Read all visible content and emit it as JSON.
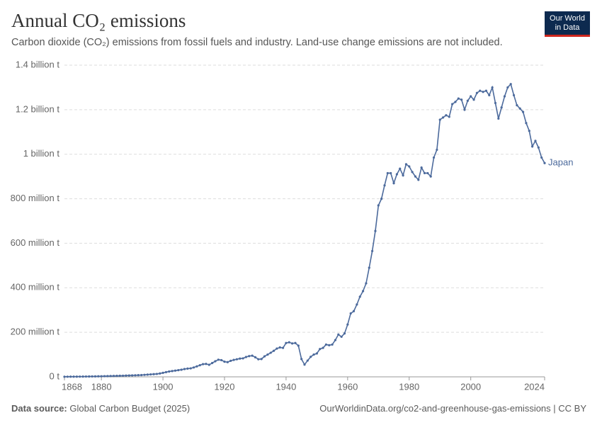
{
  "chart_data": {
    "type": "line",
    "title": "Annual CO₂ emissions",
    "subtitle": "Carbon dioxide (CO₂) emissions from fossil fuels and industry. Land-use change emissions are not included.",
    "logo": [
      "Our World",
      "in Data"
    ],
    "source_label": "Data source:",
    "source": "Global Carbon Budget (2025)",
    "footer_right": "OurWorldinData.org/co2-and-greenhouse-gas-emissions | CC BY",
    "x": [
      1868,
      1869,
      1870,
      1871,
      1872,
      1873,
      1874,
      1875,
      1876,
      1877,
      1878,
      1879,
      1880,
      1881,
      1882,
      1883,
      1884,
      1885,
      1886,
      1887,
      1888,
      1889,
      1890,
      1891,
      1892,
      1893,
      1894,
      1895,
      1896,
      1897,
      1898,
      1899,
      1900,
      1901,
      1902,
      1903,
      1904,
      1905,
      1906,
      1907,
      1908,
      1909,
      1910,
      1911,
      1912,
      1913,
      1914,
      1915,
      1916,
      1917,
      1918,
      1919,
      1920,
      1921,
      1922,
      1923,
      1924,
      1925,
      1926,
      1927,
      1928,
      1929,
      1930,
      1931,
      1932,
      1933,
      1934,
      1935,
      1936,
      1937,
      1938,
      1939,
      1940,
      1941,
      1942,
      1943,
      1944,
      1945,
      1946,
      1947,
      1948,
      1949,
      1950,
      1951,
      1952,
      1953,
      1954,
      1955,
      1956,
      1957,
      1958,
      1959,
      1960,
      1961,
      1962,
      1963,
      1964,
      1965,
      1966,
      1967,
      1968,
      1969,
      1970,
      1971,
      1972,
      1973,
      1974,
      1975,
      1976,
      1977,
      1978,
      1979,
      1980,
      1981,
      1982,
      1983,
      1984,
      1985,
      1986,
      1987,
      1988,
      1989,
      1990,
      1991,
      1992,
      1993,
      1994,
      1995,
      1996,
      1997,
      1998,
      1999,
      2000,
      2001,
      2002,
      2003,
      2004,
      2005,
      2006,
      2007,
      2008,
      2009,
      2010,
      2011,
      2012,
      2013,
      2014,
      2015,
      2016,
      2017,
      2018,
      2019,
      2020,
      2021,
      2022,
      2023,
      2024
    ],
    "series": [
      {
        "name": "Japan",
        "color": "#4c6a9c",
        "values": [
          500000.0,
          600000.0,
          700000.0,
          800000.0,
          900000.0,
          1000000.0,
          1200000.0,
          1400000.0,
          1600000.0,
          1800000.0,
          2000000.0,
          2300000.0,
          2600000.0,
          3000000.0,
          3300000.0,
          3600000.0,
          4000000.0,
          4300000.0,
          4700000.0,
          5000000.0,
          5500000.0,
          6000000.0,
          6500000.0,
          7000000.0,
          7500000.0,
          8000000.0,
          9000000.0,
          10000000.0,
          11000000.0,
          12000000.0,
          13000000.0,
          15000000.0,
          18000000.0,
          21000000.0,
          24000000.0,
          26000000.0,
          28000000.0,
          30000000.0,
          32000000.0,
          35000000.0,
          37000000.0,
          38000000.0,
          42000000.0,
          47000000.0,
          52000000.0,
          57000000.0,
          58000000.0,
          54000000.0,
          62000000.0,
          70000000.0,
          77000000.0,
          75000000.0,
          68000000.0,
          66000000.0,
          72000000.0,
          76000000.0,
          79000000.0,
          82000000.0,
          83000000.0,
          89000000.0,
          93000000.0,
          95000000.0,
          88000000.0,
          79000000.0,
          80000000.0,
          92000000.0,
          100000000.0,
          108000000.0,
          117000000.0,
          127000000.0,
          132000000.0,
          130000000.0,
          152000000.0,
          155000000.0,
          150000000.0,
          152000000.0,
          140000000.0,
          80000000.0,
          55000000.0,
          73000000.0,
          90000000.0,
          100000000.0,
          105000000.0,
          125000000.0,
          130000000.0,
          145000000.0,
          142000000.0,
          145000000.0,
          165000000.0,
          190000000.0,
          180000000.0,
          195000000.0,
          235000000.0,
          285000000.0,
          295000000.0,
          325000000.0,
          360000000.0,
          385000000.0,
          420000000.0,
          490000000.0,
          565000000.0,
          655000000.0,
          770000000.0,
          800000000.0,
          860000000.0,
          915000000.0,
          915000000.0,
          870000000.0,
          910000000.0,
          935000000.0,
          905000000.0,
          955000000.0,
          945000000.0,
          920000000.0,
          900000000.0,
          885000000.0,
          940000000.0,
          915000000.0,
          915000000.0,
          900000000.0,
          985000000.0,
          1020000000.0,
          1155000000.0,
          1165000000.0,
          1175000000.0,
          1168000000.0,
          1225000000.0,
          1235000000.0,
          1250000000.0,
          1245000000.0,
          1200000000.0,
          1240000000.0,
          1260000000.0,
          1245000000.0,
          1275000000.0,
          1285000000.0,
          1280000000.0,
          1285000000.0,
          1265000000.0,
          1300000000.0,
          1230000000.0,
          1160000000.0,
          1210000000.0,
          1260000000.0,
          1300000000.0,
          1315000000.0,
          1265000000.0,
          1220000000.0,
          1205000000.0,
          1190000000.0,
          1140000000.0,
          1105000000.0,
          1035000000.0,
          1060000000.0,
          1030000000.0,
          985000000.0,
          960000000.0
        ]
      }
    ],
    "xlim": [
      1868,
      2024
    ],
    "xticks": [
      1868,
      1880,
      1900,
      1920,
      1940,
      1960,
      1980,
      2000,
      2024
    ],
    "ylim": [
      0,
      1400000000
    ],
    "yticks": [
      {
        "value": 0,
        "label": "0 t"
      },
      {
        "value": 200000000,
        "label": "200 million t"
      },
      {
        "value": 400000000,
        "label": "400 million t"
      },
      {
        "value": 600000000,
        "label": "600 million t"
      },
      {
        "value": 800000000,
        "label": "800 million t"
      },
      {
        "value": 1000000000,
        "label": "1 billion t"
      },
      {
        "value": 1200000000,
        "label": "1.2 billion t"
      },
      {
        "value": 1400000000,
        "label": "1.4 billion t"
      }
    ],
    "grid": true
  }
}
